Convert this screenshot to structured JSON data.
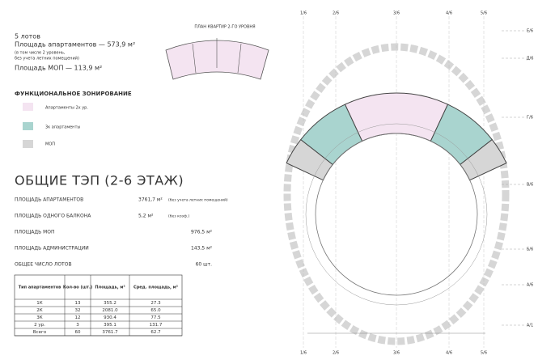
{
  "summary": {
    "lots": "5 лотов",
    "apartments_area": "Площадь апартаментов — 573,9 м²",
    "note_1": "(в том числе 2 уровень,",
    "note_2": "без учета летних помещений)",
    "common_area": "Площадь МОП — 113,9 м²"
  },
  "zoning": {
    "title": "ФУНКЦИОНАЛЬНОЕ ЗОНИРОВАНИЕ",
    "items": [
      "Апартаменты 2х ур.",
      "3к апартаменты",
      "МОП"
    ]
  },
  "inset_title": "ПЛАН КВАРТИР 2-ГО УРОВНЯ",
  "tep": {
    "title": "ОБЩИЕ ТЭП (2-6 ЭТАЖ)",
    "rows": [
      {
        "label": "ПЛОЩАДЬ АПАРТАМЕНТОВ",
        "value": "3761,7 м²",
        "note": "(без учета летних помещений)"
      },
      {
        "label": "ПЛОЩАДЬ ОДНОГО БАЛКОНА",
        "value": "5,2 м²",
        "note": "(без коэф.)"
      },
      {
        "label": "ПЛОЩАДЬ МОП",
        "value": "976,5 м²"
      },
      {
        "label": "ПЛОЩАДЬ АДМИНИСТРАЦИИ",
        "value": "143,5 м²"
      },
      {
        "label": "ОБЩЕЕ ЧИСЛО ЛОТОВ",
        "value": "60 шт."
      }
    ]
  },
  "table": {
    "header": [
      "Тип апартаментов",
      "Кол-во (шт.)",
      "Площадь, м²",
      "Сред. площадь, м²"
    ],
    "rows": [
      [
        "1К",
        "13",
        "355.2",
        "27.3"
      ],
      [
        "2К",
        "32",
        "2081.0",
        "65.0"
      ],
      [
        "3К",
        "12",
        "930.4",
        "77.5"
      ],
      [
        "2 ур.",
        "3",
        "395.1",
        "131.7"
      ],
      [
        "Всего",
        "60",
        "3761.7",
        "62.7"
      ]
    ]
  },
  "plan": {
    "axes_x": [
      "1/6",
      "2/6",
      "3/6",
      "4/6",
      "5/6"
    ],
    "axes_y": [
      "Е/6",
      "Д/6",
      "Г/6",
      "В/6",
      "Б/6",
      "А/6",
      "А/1"
    ]
  }
}
